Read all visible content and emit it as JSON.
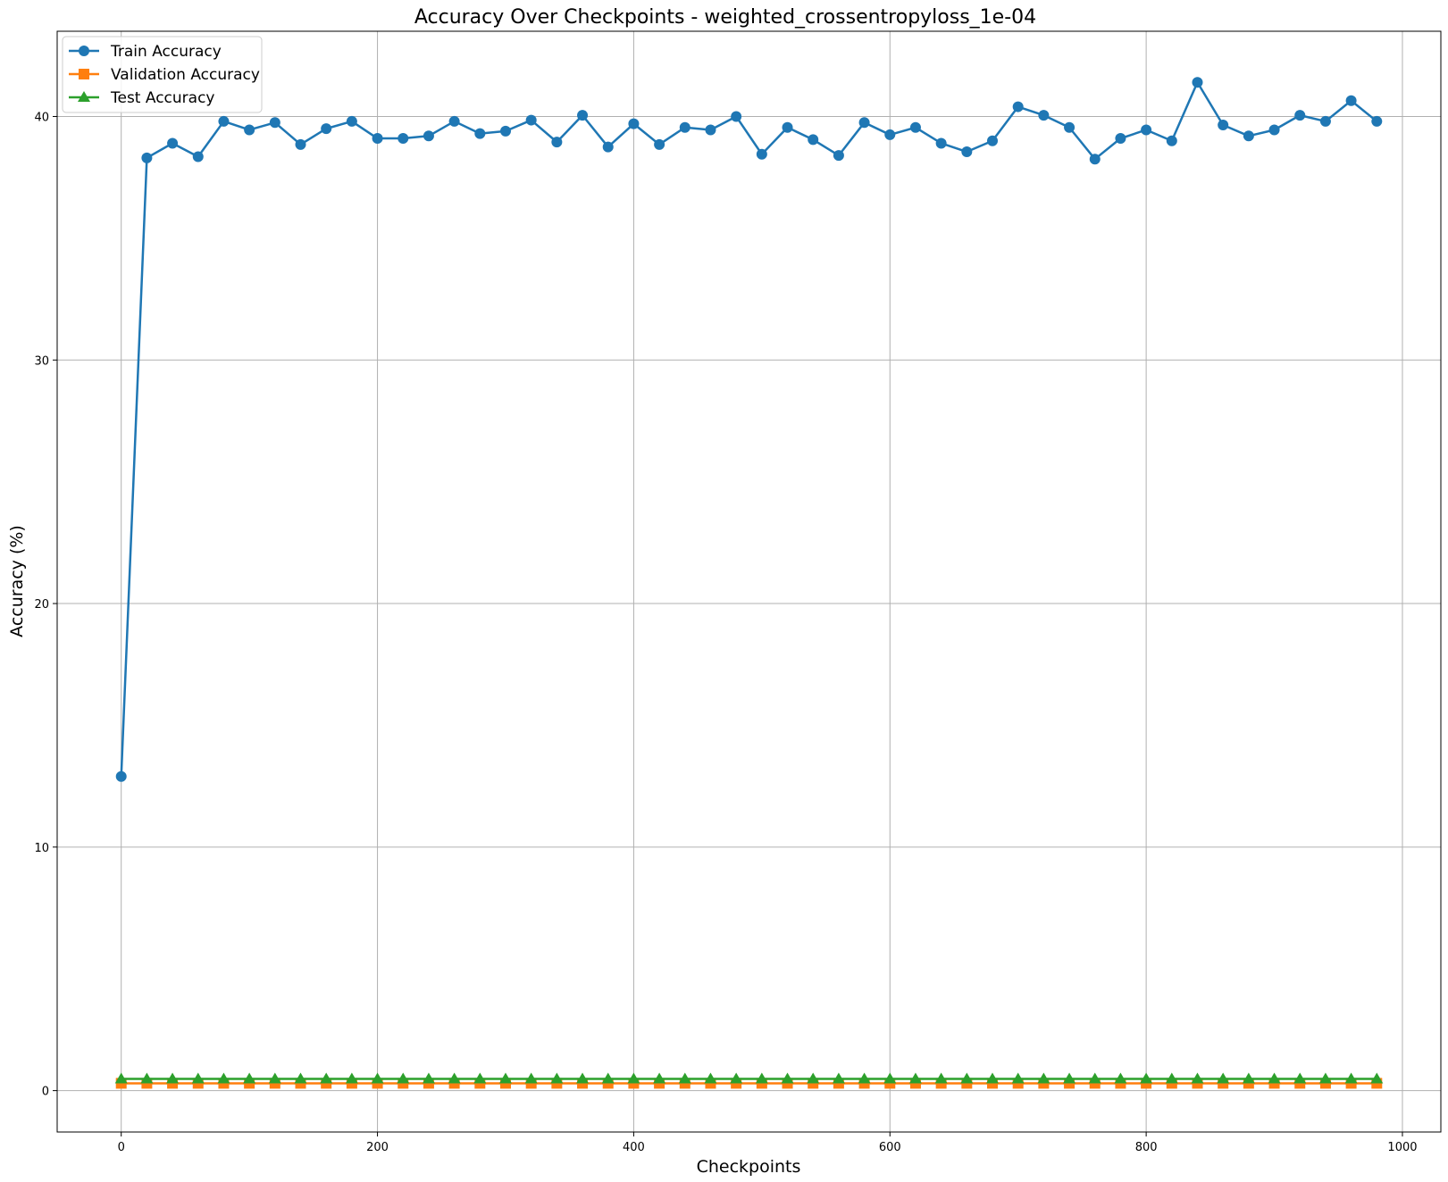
{
  "chart_data": {
    "type": "line",
    "title": "Accuracy Over Checkpoints - weighted_crossentropyloss_1e-04",
    "xlabel": "Checkpoints",
    "ylabel": "Accuracy (%)",
    "xlim": [
      -50,
      1030
    ],
    "ylim": [
      -1.7,
      43.5
    ],
    "xticks": [
      0,
      200,
      400,
      600,
      800,
      1000
    ],
    "yticks": [
      0,
      10,
      20,
      30,
      40
    ],
    "xtick_labels": [
      "0",
      "200",
      "400",
      "600",
      "800",
      "1000"
    ],
    "ytick_labels": [
      "0",
      "10",
      "20",
      "30",
      "40"
    ],
    "grid": true,
    "legend_position": "top-left",
    "x": [
      0,
      20,
      40,
      60,
      80,
      100,
      120,
      140,
      160,
      180,
      200,
      220,
      240,
      260,
      280,
      300,
      320,
      340,
      360,
      380,
      400,
      420,
      440,
      460,
      480,
      500,
      520,
      540,
      560,
      580,
      600,
      620,
      640,
      660,
      680,
      700,
      720,
      740,
      760,
      780,
      800,
      820,
      840,
      860,
      880,
      900,
      920,
      940,
      960,
      980
    ],
    "series": [
      {
        "name": "Train Accuracy",
        "color": "#1f77b4",
        "marker": "circle",
        "values": [
          12.9,
          38.3,
          38.9,
          38.35,
          39.8,
          39.45,
          39.75,
          38.85,
          39.5,
          39.8,
          39.1,
          39.1,
          39.2,
          39.8,
          39.3,
          39.4,
          39.85,
          38.95,
          40.05,
          38.75,
          39.7,
          38.85,
          39.55,
          39.45,
          40.0,
          38.45,
          39.55,
          39.05,
          38.4,
          39.75,
          39.25,
          39.55,
          38.9,
          38.55,
          39.0,
          40.4,
          40.05,
          39.55,
          38.25,
          39.1,
          39.45,
          39.0,
          41.4,
          39.65,
          39.2,
          39.45,
          40.05,
          39.8,
          40.65,
          39.8
        ]
      },
      {
        "name": "Validation Accuracy",
        "color": "#ff7f0e",
        "marker": "square",
        "constant": 0.3
      },
      {
        "name": "Test Accuracy",
        "color": "#2ca02c",
        "marker": "triangle",
        "constant": 0.48
      }
    ]
  }
}
